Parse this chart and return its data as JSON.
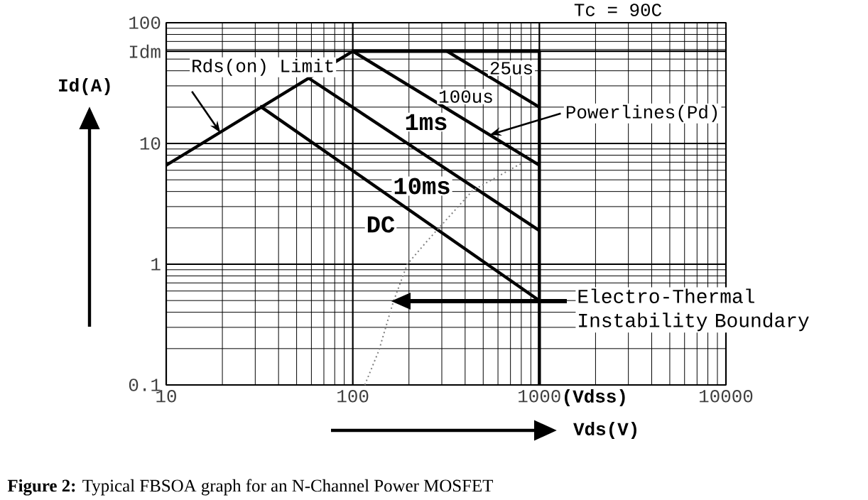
{
  "chart_data": {
    "type": "line",
    "xlabel": "Vds(V)",
    "ylabel": "Id(A)",
    "log": "xy",
    "grid": true,
    "xlim": [
      10,
      10000
    ],
    "ylim": [
      0.1,
      100
    ],
    "xticks": [
      10,
      100,
      1000,
      10000
    ],
    "yticks": [
      0.1,
      1,
      10,
      {
        "value": 58,
        "label": "Idm"
      },
      100
    ],
    "series": [
      {
        "x": [
          10,
          100,
          1000,
          1000
        ],
        "values": [
          6.6,
          58,
          58,
          0.1
        ],
        "color": "#000000"
      },
      {
        "x": [
          320,
          1000
        ],
        "values": [
          58,
          20
        ],
        "color": "#000000"
      },
      {
        "x": [
          100,
          1000
        ],
        "values": [
          58,
          6.6
        ],
        "color": "#000000"
      },
      {
        "x": [
          57.6,
          1000
        ],
        "values": [
          35,
          1.9
        ],
        "color": "#000000"
      },
      {
        "x": [
          31.8,
          1000
        ],
        "values": [
          20.4,
          0.5
        ],
        "color": "#000000"
      },
      {
        "x": [
          116,
          138,
          165,
          196,
          247,
          439,
          796
        ],
        "values": [
          0.1,
          0.193,
          0.49,
          1.0,
          1.52,
          4.08,
          6.8
        ],
        "color": "#808080",
        "line_style": "dotted"
      }
    ],
    "annotations": [
      "Tc = 90C",
      {
        "text": "Rds(on) Limit",
        "x": 19.5,
        "y": 12.3
      },
      {
        "text": "Powerlines(Pd)",
        "x": 542,
        "y": 11.8
      },
      "Electro-Thermal Instability Boundary",
      "25us",
      "100us",
      "1ms",
      "10ms",
      "DC",
      {
        "text": "(Vdss)",
        "x": 1000,
        "y": 0.1
      },
      "**Figure 2:** Typical FBSOA graph for an N-Channel Power MOSFET"
    ]
  }
}
